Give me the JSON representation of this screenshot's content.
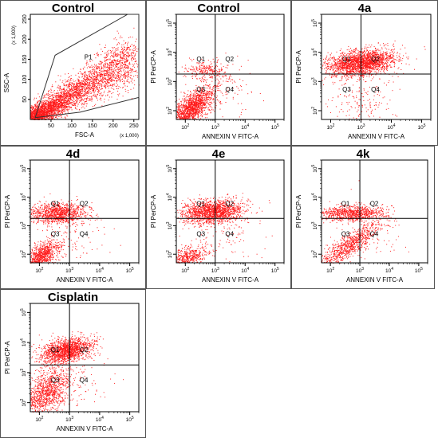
{
  "colors": {
    "dots": "#ff1a1a",
    "axis": "#000000",
    "gate": "#333333"
  },
  "chart_data": [
    {
      "type": "scatter",
      "title": "Control",
      "xlabel": "FSC-A",
      "ylabel": "SSC-A",
      "xscale": "linear",
      "yscale": "linear",
      "xlim": [
        0,
        262
      ],
      "ylim": [
        0,
        262
      ],
      "xticks": [
        "50",
        "100",
        "150",
        "200",
        "250"
      ],
      "yticks": [
        "50",
        "100",
        "150",
        "200",
        "250"
      ],
      "x_multiplier": "(x 1,000)",
      "y_multiplier": "(x 1,000)",
      "gate": {
        "name": "P1",
        "vertices": [
          [
            12,
            5
          ],
          [
            60,
            160
          ],
          [
            235,
            262
          ],
          [
            262,
            262
          ],
          [
            262,
            235
          ],
          [
            262,
            55
          ],
          [
            120,
            18
          ],
          [
            15,
            5
          ]
        ]
      },
      "population_description": "dense diagonal cloud from low FSC/SSC to high"
    },
    {
      "type": "scatter",
      "title": "Control",
      "xlabel": "ANNEXIN V FITC-A",
      "ylabel": "PI PerCP-A",
      "xscale": "log",
      "yscale": "log",
      "xlim": [
        50,
        200000
      ],
      "ylim": [
        50,
        200000
      ],
      "xticks": [
        "10^2",
        "10^3",
        "10^4",
        "10^5"
      ],
      "yticks": [
        "10^2",
        "10^3",
        "10^4",
        "10^5"
      ],
      "quadrant_split": {
        "x": 1000,
        "y": 1800
      },
      "quadrants": [
        "Q1",
        "Q2",
        "Q3",
        "Q4"
      ],
      "population_description": "most events in Q3 (live), diagonal smear"
    },
    {
      "type": "scatter",
      "title": "4a",
      "xlabel": "ANNEXIN V FITC-A",
      "ylabel": "PI PerCP-A",
      "xscale": "log",
      "yscale": "log",
      "xlim": [
        50,
        200000
      ],
      "ylim": [
        50,
        200000
      ],
      "xticks": [
        "10^2",
        "10^3",
        "10^4",
        "10^5"
      ],
      "yticks": [
        "10^2",
        "10^3",
        "10^4",
        "10^5"
      ],
      "quadrant_split": {
        "x": 1000,
        "y": 1800
      },
      "quadrants": [
        "Q1",
        "Q2",
        "Q3",
        "Q4"
      ],
      "population_description": "dense band across Q1/Q2, sparse Q3/Q4"
    },
    {
      "type": "scatter",
      "title": "4d",
      "xlabel": "ANNEXIN V FITC-A",
      "ylabel": "PI PerCP-A",
      "xscale": "log",
      "yscale": "log",
      "xlim": [
        50,
        200000
      ],
      "ylim": [
        50,
        200000
      ],
      "xticks": [
        "10^2",
        "10^3",
        "10^4",
        "10^5"
      ],
      "yticks": [
        "10^2",
        "10^3",
        "10^4",
        "10^5"
      ],
      "quadrant_split": {
        "x": 1000,
        "y": 1800
      },
      "quadrants": [
        "Q1",
        "Q2",
        "Q3",
        "Q4"
      ],
      "population_description": "band in Q1/Q2 plus cluster in lower Q3"
    },
    {
      "type": "scatter",
      "title": "4e",
      "xlabel": "ANNEXIN V FITC-A",
      "ylabel": "PI PerCP-A",
      "xscale": "log",
      "yscale": "log",
      "xlim": [
        50,
        200000
      ],
      "ylim": [
        50,
        200000
      ],
      "xticks": [
        "10^2",
        "10^3",
        "10^4",
        "10^5"
      ],
      "yticks": [
        "10^2",
        "10^3",
        "10^4",
        "10^5"
      ],
      "quadrant_split": {
        "x": 1000,
        "y": 1800
      },
      "quadrants": [
        "Q1",
        "Q2",
        "Q3",
        "Q4"
      ],
      "population_description": "dense band in Q1/Q2, small cluster lower Q3"
    },
    {
      "type": "scatter",
      "title": "4k",
      "xlabel": "ANNEXIN V FITC-A",
      "ylabel": "PI PerCP-A",
      "xscale": "log",
      "yscale": "log",
      "xlim": [
        50,
        200000
      ],
      "ylim": [
        50,
        200000
      ],
      "xticks": [
        "10^2",
        "10^3",
        "10^4",
        "10^5"
      ],
      "yticks": [
        "10^2",
        "10^3",
        "10^4",
        "10^5"
      ],
      "quadrant_split": {
        "x": 1000,
        "y": 1800
      },
      "quadrants": [
        "Q1",
        "Q2",
        "Q3",
        "Q4"
      ],
      "population_description": "thin band in Q1/Q2, diagonal smear Q3 to Q4"
    },
    {
      "type": "scatter",
      "title": "Cisplatin",
      "xlabel": "ANNEXIN V FITC-A",
      "ylabel": "PI PerCP-A",
      "xscale": "log",
      "yscale": "log",
      "xlim": [
        50,
        200000
      ],
      "ylim": [
        50,
        200000
      ],
      "xticks": [
        "10^2",
        "10^3",
        "10^4",
        "10^5"
      ],
      "yticks": [
        "10^2",
        "10^3",
        "10^4",
        "10^5"
      ],
      "quadrant_split": {
        "x": 1000,
        "y": 1800
      },
      "quadrants": [
        "Q1",
        "Q2",
        "Q3",
        "Q4"
      ],
      "population_description": "dense cluster upper Q1/Q2, cloud in Q3"
    }
  ]
}
